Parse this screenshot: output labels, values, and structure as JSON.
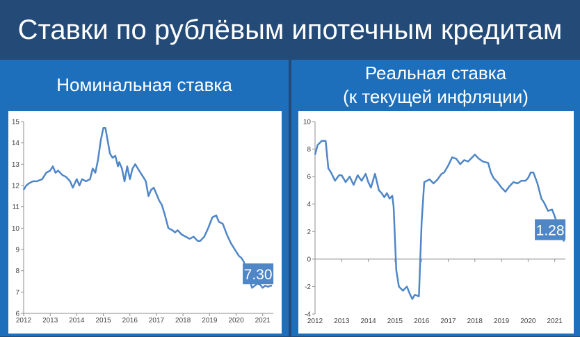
{
  "page": {
    "title": "Ставки по рублёвым ипотечным кредитам"
  },
  "colors": {
    "title_bg": "#244b78",
    "panel_bg": "#1d6fbc",
    "line": "#4f86c6",
    "badge_bg": "#4f86c6"
  },
  "charts": {
    "nominal": {
      "header": "Номинальная ставка",
      "badge": "7.30"
    },
    "real": {
      "header_line1": "Реальная ставка",
      "header_line2": "(к текущей инфляции)",
      "badge": "1.28"
    }
  },
  "chart_data": [
    {
      "type": "line",
      "title": "Номинальная ставка",
      "ylim": [
        6,
        15
      ],
      "xlim": [
        2012,
        2021.4
      ],
      "yticks": [
        6,
        7,
        8,
        9,
        10,
        11,
        12,
        13,
        14,
        15
      ],
      "xticks": [
        2012,
        2013,
        2014,
        2015,
        2016,
        2017,
        2018,
        2019,
        2020,
        2021
      ],
      "grid": false,
      "annotation": "7.30",
      "series": [
        {
          "x": [
            2012.0,
            2012.1,
            2012.2,
            2012.35,
            2012.5,
            2012.7,
            2012.85,
            2013.0,
            2013.1,
            2013.2,
            2013.3,
            2013.45,
            2013.6,
            2013.75,
            2013.85,
            2014.0,
            2014.1,
            2014.2,
            2014.35,
            2014.5,
            2014.6,
            2014.7,
            2014.8,
            2014.9,
            2015.0,
            2015.08,
            2015.15,
            2015.25,
            2015.35,
            2015.45,
            2015.55,
            2015.6,
            2015.7,
            2015.8,
            2015.9,
            2016.0,
            2016.1,
            2016.2,
            2016.3,
            2016.4,
            2016.5,
            2016.6,
            2016.7,
            2016.8,
            2016.9,
            2017.0,
            2017.1,
            2017.2,
            2017.3,
            2017.45,
            2017.6,
            2017.7,
            2017.8,
            2017.95,
            2018.1,
            2018.25,
            2018.4,
            2018.55,
            2018.65,
            2018.8,
            2018.95,
            2019.1,
            2019.25,
            2019.35,
            2019.5,
            2019.65,
            2019.8,
            2019.95,
            2020.1,
            2020.2,
            2020.3,
            2020.4,
            2020.5,
            2020.6,
            2020.7,
            2020.8,
            2020.9,
            2021.0,
            2021.1,
            2021.2,
            2021.3,
            2021.35
          ],
          "y": [
            11.8,
            12.0,
            12.1,
            12.2,
            12.2,
            12.3,
            12.6,
            12.7,
            12.9,
            12.6,
            12.7,
            12.5,
            12.4,
            12.2,
            11.9,
            12.3,
            12.0,
            12.3,
            12.2,
            12.3,
            12.8,
            12.6,
            13.2,
            14.1,
            14.7,
            14.7,
            14.2,
            13.5,
            13.3,
            13.4,
            12.9,
            13.1,
            12.8,
            12.2,
            12.9,
            12.3,
            12.8,
            13.0,
            12.8,
            12.6,
            12.4,
            12.2,
            11.5,
            11.8,
            11.9,
            11.6,
            11.3,
            11.1,
            10.7,
            10.0,
            9.9,
            9.8,
            9.9,
            9.7,
            9.6,
            9.5,
            9.6,
            9.4,
            9.4,
            9.6,
            10.0,
            10.5,
            10.6,
            10.3,
            10.2,
            9.7,
            9.3,
            9.0,
            8.7,
            8.6,
            8.4,
            7.5,
            7.6,
            7.2,
            7.3,
            7.4,
            7.35,
            7.2,
            7.3,
            7.25,
            7.3,
            7.3
          ]
        }
      ]
    },
    {
      "type": "line",
      "title": "Реальная ставка (к текущей инфляции)",
      "ylim": [
        -4,
        10
      ],
      "xlim": [
        2012,
        2021.4
      ],
      "yticks": [
        -4,
        -2,
        0,
        2,
        4,
        6,
        8,
        10
      ],
      "xticks": [
        2012,
        2013,
        2014,
        2015,
        2016,
        2017,
        2018,
        2019,
        2020,
        2021
      ],
      "grid": false,
      "annotation": "1.28",
      "series": [
        {
          "x": [
            2012.0,
            2012.1,
            2012.25,
            2012.4,
            2012.5,
            2012.6,
            2012.75,
            2012.9,
            2013.0,
            2013.15,
            2013.3,
            2013.45,
            2013.6,
            2013.75,
            2013.9,
            2014.0,
            2014.1,
            2014.25,
            2014.4,
            2014.5,
            2014.6,
            2014.7,
            2014.8,
            2014.9,
            2014.95,
            2015.05,
            2015.15,
            2015.3,
            2015.45,
            2015.55,
            2015.65,
            2015.75,
            2015.9,
            2016.0,
            2016.1,
            2016.2,
            2016.3,
            2016.45,
            2016.6,
            2016.75,
            2016.85,
            2017.0,
            2017.15,
            2017.3,
            2017.45,
            2017.6,
            2017.75,
            2017.9,
            2018.0,
            2018.15,
            2018.3,
            2018.5,
            2018.6,
            2018.7,
            2018.85,
            2019.0,
            2019.15,
            2019.3,
            2019.45,
            2019.6,
            2019.75,
            2019.9,
            2020.0,
            2020.1,
            2020.2,
            2020.35,
            2020.5,
            2020.6,
            2020.75,
            2020.9,
            2021.0,
            2021.1,
            2021.2,
            2021.3,
            2021.35
          ],
          "y": [
            7.6,
            8.3,
            8.6,
            8.6,
            6.6,
            6.3,
            5.7,
            6.1,
            6.1,
            5.6,
            6.0,
            5.4,
            6.1,
            5.7,
            6.2,
            5.6,
            5.2,
            6.2,
            5.0,
            4.8,
            4.5,
            4.8,
            4.4,
            4.6,
            3.8,
            -0.8,
            -2.0,
            -2.3,
            -2.0,
            -2.5,
            -2.9,
            -2.6,
            -2.7,
            2.6,
            5.6,
            5.7,
            5.8,
            5.5,
            5.8,
            6.2,
            6.3,
            6.8,
            7.4,
            7.3,
            6.9,
            7.2,
            7.1,
            7.4,
            7.6,
            7.3,
            7.1,
            7.0,
            6.3,
            5.9,
            5.6,
            5.2,
            4.9,
            5.3,
            5.6,
            5.5,
            5.7,
            5.7,
            5.9,
            6.3,
            6.3,
            5.5,
            4.4,
            4.1,
            3.5,
            3.6,
            3.1,
            2.5,
            1.9,
            1.5,
            1.28
          ]
        }
      ]
    }
  ]
}
